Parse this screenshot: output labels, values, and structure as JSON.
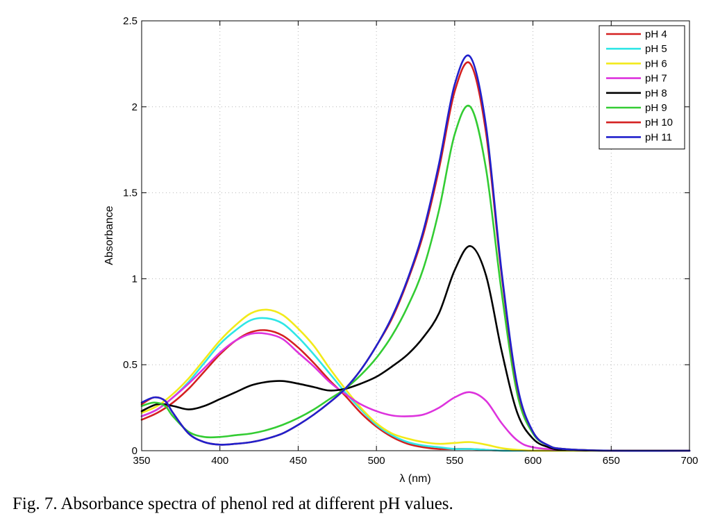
{
  "caption": "Fig. 7. Absorbance spectra of phenol red at different pH values.",
  "chart_data": {
    "type": "line",
    "title": "",
    "xlabel": "λ (nm)",
    "ylabel": "Absorbance",
    "xlim": [
      350,
      700
    ],
    "ylim": [
      0,
      2.5
    ],
    "xticks": [
      350,
      400,
      450,
      500,
      550,
      600,
      650,
      700
    ],
    "yticks": [
      0,
      0.5,
      1,
      1.5,
      2,
      2.5
    ],
    "ytick_labels": [
      "0",
      "0.5",
      "1",
      "1.5",
      "2",
      "2.5"
    ],
    "grid": true,
    "legend_position": "top-right",
    "series": [
      {
        "name": "pH 4",
        "color": "#d42020",
        "x": [
          350,
          360,
          370,
          380,
          390,
          400,
          410,
          420,
          430,
          440,
          450,
          460,
          470,
          480,
          490,
          500,
          510,
          520,
          530,
          540,
          550,
          560,
          570,
          580,
          590,
          600,
          620,
          650,
          700
        ],
        "y": [
          0.18,
          0.22,
          0.28,
          0.36,
          0.46,
          0.56,
          0.64,
          0.69,
          0.7,
          0.67,
          0.6,
          0.51,
          0.41,
          0.32,
          0.22,
          0.14,
          0.08,
          0.04,
          0.02,
          0.01,
          0.01,
          0.01,
          0.005,
          0,
          0,
          0,
          0,
          0,
          0
        ]
      },
      {
        "name": "pH 5",
        "color": "#2ee6e6",
        "x": [
          350,
          360,
          370,
          380,
          390,
          400,
          410,
          420,
          430,
          440,
          450,
          460,
          470,
          480,
          490,
          500,
          510,
          520,
          530,
          540,
          550,
          560,
          570,
          580,
          590,
          600,
          620,
          650,
          700
        ],
        "y": [
          0.2,
          0.24,
          0.31,
          0.4,
          0.51,
          0.62,
          0.7,
          0.76,
          0.77,
          0.74,
          0.66,
          0.56,
          0.45,
          0.34,
          0.24,
          0.15,
          0.09,
          0.05,
          0.03,
          0.02,
          0.01,
          0.01,
          0.005,
          0,
          0,
          0,
          0,
          0,
          0
        ]
      },
      {
        "name": "pH 6",
        "color": "#f2ea1a",
        "x": [
          350,
          360,
          370,
          380,
          390,
          400,
          410,
          420,
          430,
          440,
          450,
          460,
          470,
          480,
          490,
          500,
          510,
          520,
          530,
          540,
          550,
          560,
          570,
          580,
          590,
          600,
          620,
          650,
          700
        ],
        "y": [
          0.22,
          0.26,
          0.33,
          0.42,
          0.53,
          0.64,
          0.73,
          0.8,
          0.82,
          0.79,
          0.71,
          0.61,
          0.48,
          0.36,
          0.25,
          0.16,
          0.1,
          0.07,
          0.05,
          0.04,
          0.045,
          0.05,
          0.035,
          0.015,
          0.005,
          0,
          0,
          0,
          0
        ]
      },
      {
        "name": "pH 7",
        "color": "#dd33dd",
        "x": [
          350,
          360,
          370,
          380,
          390,
          400,
          410,
          420,
          430,
          440,
          450,
          460,
          470,
          480,
          490,
          500,
          510,
          520,
          530,
          540,
          550,
          560,
          570,
          580,
          590,
          600,
          620,
          650,
          700
        ],
        "y": [
          0.2,
          0.24,
          0.31,
          0.39,
          0.48,
          0.57,
          0.64,
          0.68,
          0.68,
          0.65,
          0.57,
          0.49,
          0.4,
          0.33,
          0.27,
          0.23,
          0.205,
          0.2,
          0.21,
          0.25,
          0.31,
          0.34,
          0.29,
          0.16,
          0.06,
          0.02,
          0.005,
          0,
          0
        ]
      },
      {
        "name": "pH 8",
        "color": "#000000",
        "x": [
          350,
          360,
          370,
          380,
          390,
          400,
          410,
          420,
          430,
          440,
          450,
          460,
          470,
          480,
          490,
          500,
          510,
          520,
          530,
          540,
          550,
          560,
          570,
          580,
          590,
          600,
          610,
          620,
          650,
          700
        ],
        "y": [
          0.23,
          0.27,
          0.26,
          0.24,
          0.26,
          0.3,
          0.34,
          0.38,
          0.4,
          0.405,
          0.39,
          0.37,
          0.35,
          0.36,
          0.39,
          0.43,
          0.49,
          0.56,
          0.66,
          0.8,
          1.05,
          1.19,
          1.02,
          0.58,
          0.22,
          0.07,
          0.02,
          0.005,
          0,
          0
        ]
      },
      {
        "name": "pH 9",
        "color": "#33cc33",
        "x": [
          350,
          358,
          365,
          370,
          380,
          390,
          400,
          410,
          420,
          430,
          440,
          450,
          460,
          470,
          480,
          490,
          500,
          510,
          520,
          530,
          540,
          550,
          560,
          570,
          580,
          590,
          600,
          610,
          620,
          650,
          700
        ],
        "y": [
          0.26,
          0.28,
          0.26,
          0.2,
          0.11,
          0.08,
          0.08,
          0.09,
          0.1,
          0.12,
          0.15,
          0.19,
          0.24,
          0.3,
          0.36,
          0.44,
          0.54,
          0.67,
          0.84,
          1.06,
          1.4,
          1.84,
          2.0,
          1.64,
          0.92,
          0.33,
          0.1,
          0.03,
          0.01,
          0,
          0
        ]
      },
      {
        "name": "pH 10",
        "color": "#d42020",
        "x": [
          350,
          358,
          365,
          370,
          380,
          390,
          400,
          410,
          420,
          430,
          440,
          450,
          460,
          470,
          480,
          490,
          500,
          510,
          520,
          530,
          540,
          550,
          560,
          570,
          580,
          590,
          600,
          610,
          620,
          650,
          700
        ],
        "y": [
          0.27,
          0.31,
          0.29,
          0.22,
          0.1,
          0.05,
          0.035,
          0.04,
          0.05,
          0.07,
          0.1,
          0.15,
          0.21,
          0.28,
          0.36,
          0.47,
          0.61,
          0.77,
          0.99,
          1.26,
          1.64,
          2.09,
          2.25,
          1.85,
          1.02,
          0.37,
          0.11,
          0.03,
          0.01,
          0,
          0
        ]
      },
      {
        "name": "pH 11",
        "color": "#2020cc",
        "x": [
          350,
          358,
          365,
          370,
          380,
          390,
          400,
          410,
          420,
          430,
          440,
          450,
          460,
          470,
          480,
          490,
          500,
          510,
          520,
          530,
          540,
          550,
          560,
          570,
          580,
          590,
          600,
          610,
          620,
          650,
          700
        ],
        "y": [
          0.28,
          0.31,
          0.29,
          0.22,
          0.1,
          0.05,
          0.035,
          0.04,
          0.05,
          0.07,
          0.1,
          0.15,
          0.21,
          0.28,
          0.36,
          0.47,
          0.61,
          0.78,
          1.0,
          1.28,
          1.67,
          2.13,
          2.29,
          1.89,
          1.04,
          0.38,
          0.11,
          0.03,
          0.01,
          0,
          0
        ]
      }
    ]
  }
}
